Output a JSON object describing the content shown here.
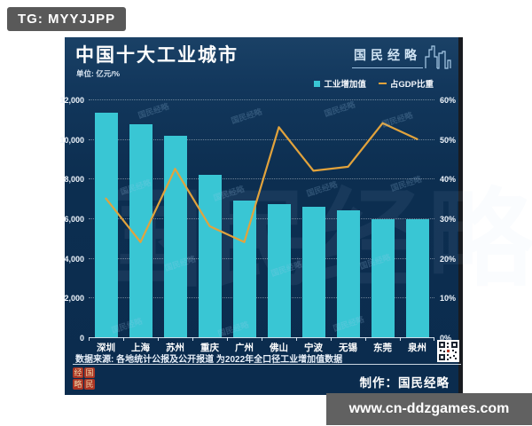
{
  "overlay": {
    "tg_badge": "TG: MYYJJPP",
    "site_badge": "www.cn-ddzgames.com"
  },
  "header": {
    "title": "中国十大工业城市",
    "unit": "单位: 亿元/%",
    "brand": "国民经略"
  },
  "legend": {
    "bar_label": "工业增加值",
    "line_label": "占GDP比重"
  },
  "chart_data": {
    "type": "bar",
    "title": "中国十大工业城市",
    "subtitle_unit": "单位: 亿元/%",
    "categories": [
      "深圳",
      "上海",
      "苏州",
      "重庆",
      "广州",
      "佛山",
      "宁波",
      "无锡",
      "东莞",
      "泉州"
    ],
    "series": [
      {
        "name": "工业增加值",
        "type": "bar",
        "axis": "left",
        "values": [
          11350,
          10750,
          10150,
          8200,
          6900,
          6700,
          6600,
          6400,
          5950,
          5950
        ]
      },
      {
        "name": "占GDP比重",
        "type": "line",
        "axis": "right",
        "values": [
          35,
          24,
          42.5,
          28,
          24,
          53,
          42,
          43,
          54,
          50
        ]
      }
    ],
    "left_axis": {
      "min": 0,
      "max": 12000,
      "ticks": [
        "12,000",
        "10,000",
        "8,000",
        "6,000",
        "4,000",
        "2,000",
        "0"
      ]
    },
    "right_axis": {
      "min": 0,
      "max": 60,
      "ticks": [
        "60%",
        "50%",
        "40%",
        "30%",
        "20%",
        "10%",
        "0%"
      ]
    },
    "grid": "horizontal-dotted",
    "legend_position": "top-right",
    "colors": {
      "bar": "#39c6d4",
      "line": "#e2a33c",
      "panel_bg": "#0c2e50"
    }
  },
  "footer": {
    "source": "数据来源: 各地统计公报及公开报道 为2022年全口径工业增加值数据",
    "credit": "制作：国民经略",
    "seal_chars": [
      "经",
      "国",
      "略",
      "民"
    ]
  },
  "watermark": {
    "text": "国民经略"
  }
}
